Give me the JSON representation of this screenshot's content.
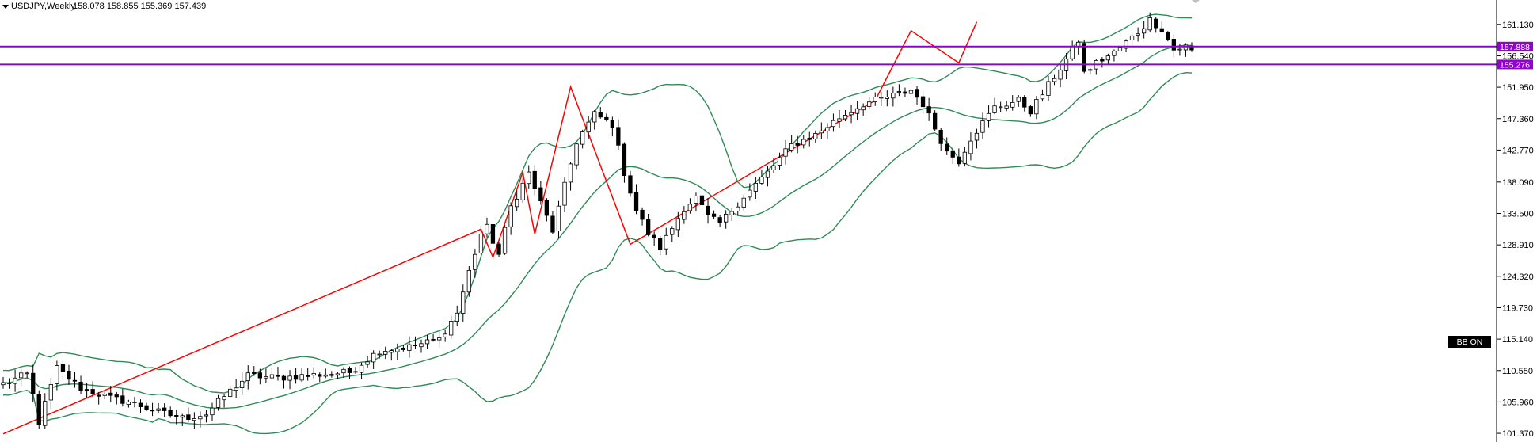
{
  "header": {
    "symbol": "USDJPY,Weekly",
    "ohlc": "158.078 158.855 155.369 157.439"
  },
  "bb_button": {
    "label": "BB ON"
  },
  "colors": {
    "up_candle": "#ffffff",
    "down_candle": "#000000",
    "candle_outline": "#000000",
    "bollinger": "#2e8b57",
    "zigzag": "#ff0000",
    "hline": "#9400d3",
    "price_badge": "#9400d3",
    "axis_text": "#000000"
  },
  "chart_data": {
    "type": "candlestick",
    "title": "USDJPY,Weekly",
    "y_ticks": [
      101.37,
      105.96,
      110.55,
      115.14,
      119.73,
      124.32,
      128.91,
      133.5,
      138.09,
      142.77,
      147.36,
      151.95,
      156.54,
      161.13
    ],
    "y_tick_labels": [
      "101.370",
      "105.960",
      "110.550",
      "115.140",
      "119.730",
      "124.320",
      "128.910",
      "133.500",
      "138.090",
      "142.770",
      "147.360",
      "151.950",
      "156.540",
      "161.130"
    ],
    "ylim": [
      100.8,
      164.0
    ],
    "horizontal_levels": [
      {
        "value": 157.888,
        "label": "157.888"
      },
      {
        "value": 155.276,
        "label": "155.276"
      }
    ],
    "bar_count": 200,
    "ohlc_anchors": [
      [
        0,
        108.6
      ],
      [
        4,
        110.0
      ],
      [
        5,
        107.0
      ],
      [
        6,
        103.0
      ],
      [
        9,
        110.9
      ],
      [
        13,
        108.0
      ],
      [
        18,
        106.5
      ],
      [
        21,
        106.0
      ],
      [
        26,
        104.5
      ],
      [
        30,
        103.6
      ],
      [
        34,
        104.2
      ],
      [
        37,
        106.8
      ],
      [
        41,
        109.8
      ],
      [
        46,
        109.5
      ],
      [
        52,
        109.9
      ],
      [
        58,
        110.3
      ],
      [
        63,
        113.5
      ],
      [
        68,
        114.0
      ],
      [
        73,
        115.1
      ],
      [
        76,
        119.0
      ],
      [
        78,
        125.0
      ],
      [
        80,
        130.5
      ],
      [
        81,
        131.4
      ],
      [
        83,
        127.5
      ],
      [
        85,
        134.5
      ],
      [
        88,
        139.4
      ],
      [
        90,
        135.0
      ],
      [
        92,
        131.0
      ],
      [
        96,
        144.0
      ],
      [
        99,
        148.0
      ],
      [
        102,
        146.5
      ],
      [
        104,
        139.5
      ],
      [
        106,
        134.0
      ],
      [
        108,
        130.6
      ],
      [
        110,
        128.5
      ],
      [
        114,
        134.3
      ],
      [
        116,
        135.8
      ],
      [
        118,
        133.0
      ],
      [
        120,
        132.0
      ],
      [
        124,
        136.0
      ],
      [
        128,
        139.5
      ],
      [
        132,
        143.5
      ],
      [
        136,
        145.0
      ],
      [
        140,
        147.5
      ],
      [
        144,
        149.5
      ],
      [
        148,
        150.5
      ],
      [
        152,
        151.5
      ],
      [
        154,
        149.5
      ],
      [
        156,
        146.0
      ],
      [
        158,
        142.5
      ],
      [
        160,
        141.2
      ],
      [
        162,
        144.5
      ],
      [
        166,
        149.0
      ],
      [
        170,
        150.0
      ],
      [
        172,
        148.5
      ],
      [
        174,
        151.0
      ],
      [
        178,
        156.0
      ],
      [
        180,
        158.8
      ],
      [
        181,
        154.0
      ],
      [
        183,
        155.5
      ],
      [
        186,
        157.0
      ],
      [
        190,
        160.0
      ],
      [
        192,
        161.8
      ],
      [
        194,
        160.5
      ],
      [
        196,
        157.4
      ]
    ],
    "zigzag_points": [
      [
        0,
        101.3
      ],
      [
        80,
        131.2
      ],
      [
        82,
        127.1
      ],
      [
        87,
        139.5
      ],
      [
        89,
        130.5
      ],
      [
        95,
        152.0
      ],
      [
        105,
        129.0
      ],
      [
        146,
        150.0
      ],
      [
        152,
        160.2
      ],
      [
        160,
        155.5
      ],
      [
        163,
        161.5
      ]
    ],
    "grid": false,
    "legend": "none"
  }
}
